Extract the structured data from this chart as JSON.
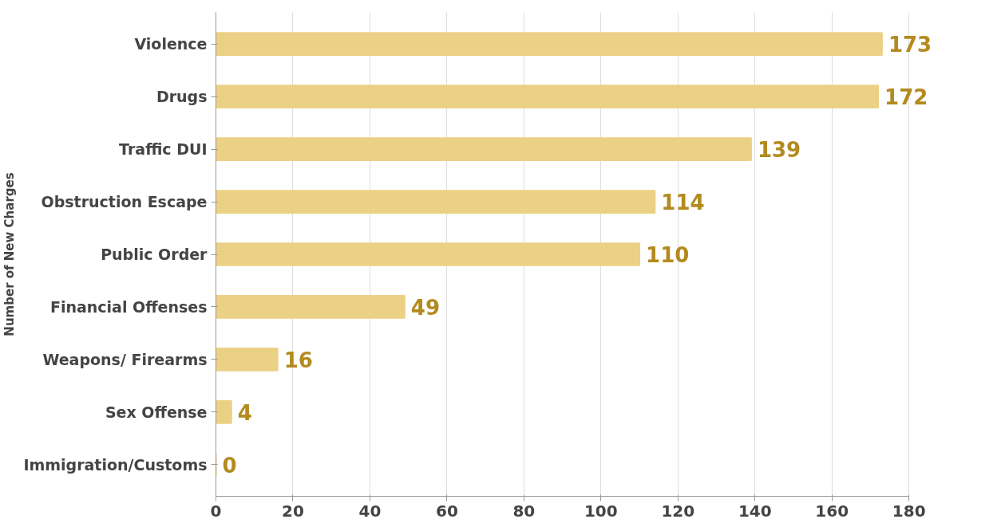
{
  "chart_data": {
    "type": "bar",
    "orientation": "horizontal",
    "ylabel": "Number of New Charges",
    "categories": [
      "Violence",
      "Drugs",
      "Traffic DUI",
      "Obstruction Escape",
      "Public Order",
      "Financial Offenses",
      "Weapons/ Firearms",
      "Sex Offense",
      "Immigration/Customs"
    ],
    "values": [
      173,
      172,
      139,
      114,
      110,
      49,
      16,
      4,
      0
    ],
    "color": "#ebd186",
    "xlim": [
      0,
      180
    ],
    "xticks": [
      0,
      20,
      40,
      60,
      80,
      100,
      120,
      140,
      160,
      180
    ],
    "grid": "x",
    "data_labels": true
  }
}
